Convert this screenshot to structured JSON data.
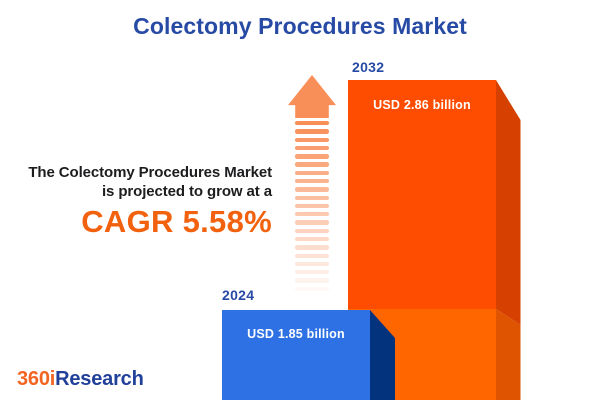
{
  "title": "Colectomy Procedures Market",
  "intro": {
    "line1": "The Colectomy Procedures Market",
    "line2": "is projected to grow at a",
    "cagr": "CAGR 5.58%"
  },
  "logo": {
    "part1": "360i",
    "part2": "Research"
  },
  "arrow": {
    "stripe_count": 21,
    "fade_step": 0.047
  },
  "colors": {
    "title-blue": "#274AA5",
    "text-dark": "#1D1D1F",
    "accent-orange": "#F2610D",
    "arrow-orange": "#F88E58",
    "bar-2024-front": "#2E71E4",
    "bar-2024-side": "#04337E",
    "bar-2032-front-top": "#FE4D00",
    "bar-2032-front-bottom": "#FF6600",
    "bar-2032-side-top": "#D64000",
    "bar-2032-side-bottom": "#DE5400",
    "label-white": "#FFFFFF",
    "logo-orange": "#F26522",
    "logo-blue": "#21409A"
  },
  "chart_data": {
    "type": "bar",
    "title": "Colectomy Procedures Market",
    "categories": [
      "2024",
      "2032"
    ],
    "values": [
      1.85,
      2.86
    ],
    "unit": "USD billion",
    "value_labels": [
      "USD 1.85 billion",
      "USD 2.86 billion"
    ],
    "series_colors": [
      "#2E71E4",
      "#FE4D00"
    ],
    "annotation": "CAGR 5.58%",
    "cagr_percent": 5.58,
    "legend_position": "none",
    "axes_visible": false,
    "grid": false
  }
}
